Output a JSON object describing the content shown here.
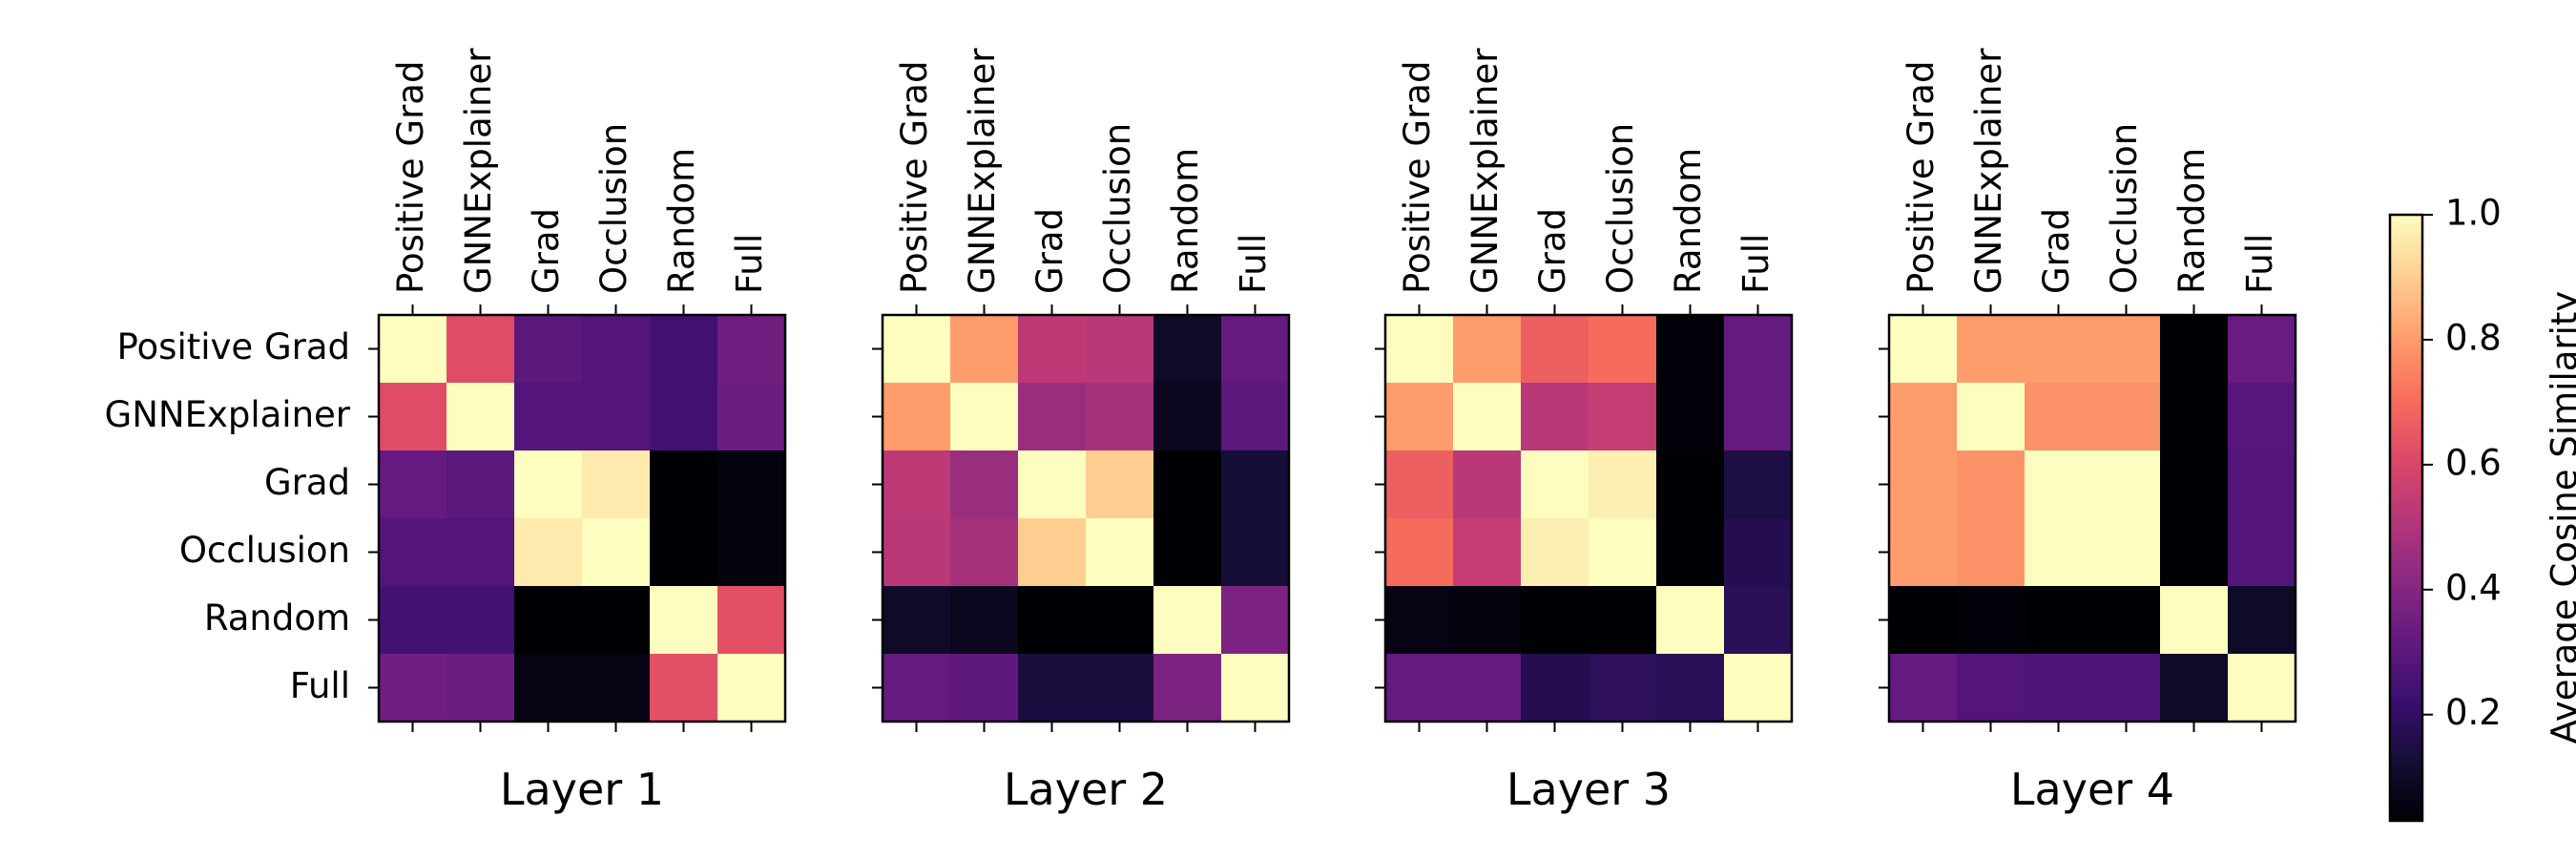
{
  "chart_data": {
    "type": "heatmap",
    "labels": [
      "Positive Grad",
      "GNNExplainer",
      "Grad",
      "Occlusion",
      "Random",
      "Full"
    ],
    "panels": [
      {
        "title": "Layer 1",
        "matrix": [
          [
            1.0,
            0.62,
            0.3,
            0.28,
            0.24,
            0.35
          ],
          [
            0.62,
            1.0,
            0.28,
            0.28,
            0.24,
            0.34
          ],
          [
            0.32,
            0.3,
            1.0,
            0.96,
            0.02,
            0.05
          ],
          [
            0.28,
            0.28,
            0.96,
            1.0,
            0.02,
            0.05
          ],
          [
            0.24,
            0.24,
            0.03,
            0.03,
            1.0,
            0.63
          ],
          [
            0.35,
            0.34,
            0.06,
            0.06,
            0.63,
            1.0
          ]
        ]
      },
      {
        "title": "Layer 2",
        "matrix": [
          [
            1.0,
            0.8,
            0.53,
            0.52,
            0.1,
            0.32
          ],
          [
            0.8,
            1.0,
            0.45,
            0.48,
            0.08,
            0.3
          ],
          [
            0.53,
            0.45,
            1.0,
            0.9,
            0.02,
            0.13
          ],
          [
            0.52,
            0.48,
            0.9,
            1.0,
            0.02,
            0.13
          ],
          [
            0.1,
            0.08,
            0.03,
            0.03,
            1.0,
            0.38
          ],
          [
            0.32,
            0.31,
            0.14,
            0.14,
            0.38,
            1.0
          ]
        ]
      },
      {
        "title": "Layer 3",
        "matrix": [
          [
            1.0,
            0.8,
            0.67,
            0.7,
            0.04,
            0.32
          ],
          [
            0.8,
            1.0,
            0.52,
            0.55,
            0.04,
            0.32
          ],
          [
            0.67,
            0.52,
            1.0,
            0.97,
            0.02,
            0.15
          ],
          [
            0.7,
            0.55,
            0.97,
            1.0,
            0.02,
            0.17
          ],
          [
            0.06,
            0.05,
            0.03,
            0.03,
            1.0,
            0.18
          ],
          [
            0.32,
            0.32,
            0.17,
            0.19,
            0.18,
            1.0
          ]
        ]
      },
      {
        "title": "Layer 4",
        "matrix": [
          [
            1.0,
            0.8,
            0.8,
            0.8,
            0.02,
            0.33
          ],
          [
            0.8,
            1.0,
            0.78,
            0.78,
            0.02,
            0.29
          ],
          [
            0.8,
            0.78,
            1.0,
            1.0,
            0.02,
            0.28
          ],
          [
            0.8,
            0.78,
            1.0,
            1.0,
            0.02,
            0.28
          ],
          [
            0.03,
            0.04,
            0.03,
            0.03,
            1.0,
            0.1
          ],
          [
            0.32,
            0.28,
            0.27,
            0.27,
            0.1,
            1.0
          ]
        ]
      }
    ],
    "colorbar": {
      "label": "Average Cosine Similarity",
      "range": [
        0.03,
        1.0
      ],
      "ticks": [
        "1.0",
        "0.8",
        "0.6",
        "0.4",
        "0.2"
      ],
      "colormap": "magma"
    },
    "grid": false
  }
}
